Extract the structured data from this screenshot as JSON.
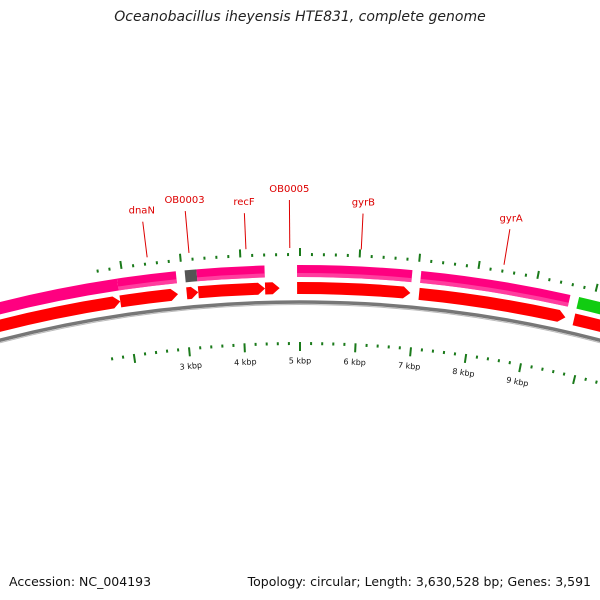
{
  "title": "Oceanobacillus iheyensis HTE831, complete genome",
  "footer": {
    "accession": "Accession: NC_004193",
    "summary": "Topology: circular; Length: 3,630,528 bp; Genes: 3,591"
  },
  "colors": {
    "gene_forward": "#ff0080",
    "gene_strand_forward": "#ff0000",
    "pseudo_gene": "#555555",
    "rrna_gene": "#11cc11",
    "tick": "#1a7a1a",
    "label": "#dd0000",
    "backbone": "#777777"
  },
  "genes": [
    {
      "name": "dnaN",
      "start_kbp": 1.9,
      "end_kbp": 2.9
    },
    {
      "name": "OB0003",
      "start_kbp": 3.05,
      "end_kbp": 3.25
    },
    {
      "name": "recF",
      "start_kbp": 3.25,
      "end_kbp": 4.4
    },
    {
      "name": "OB0005",
      "start_kbp": 4.4,
      "end_kbp": 4.65
    },
    {
      "name": "gyrB",
      "start_kbp": 4.95,
      "end_kbp": 6.9
    },
    {
      "name": "gyrA",
      "start_kbp": 7.05,
      "end_kbp": 9.6
    }
  ],
  "gene_labels": [
    {
      "name": "dnaN",
      "kbp": 2.45
    },
    {
      "name": "OB0003",
      "kbp": 3.15
    },
    {
      "name": "recF",
      "kbp": 4.1
    },
    {
      "name": "OB0005",
      "kbp": 4.83
    },
    {
      "name": "gyrB",
      "kbp": 6.02
    },
    {
      "name": "gyrA",
      "kbp": 8.41
    }
  ],
  "scale_labels": [
    "3 kbp",
    "4 kbp",
    "5 kbp",
    "6 kbp",
    "7 kbp",
    "8 kbp",
    "9 kbp"
  ]
}
